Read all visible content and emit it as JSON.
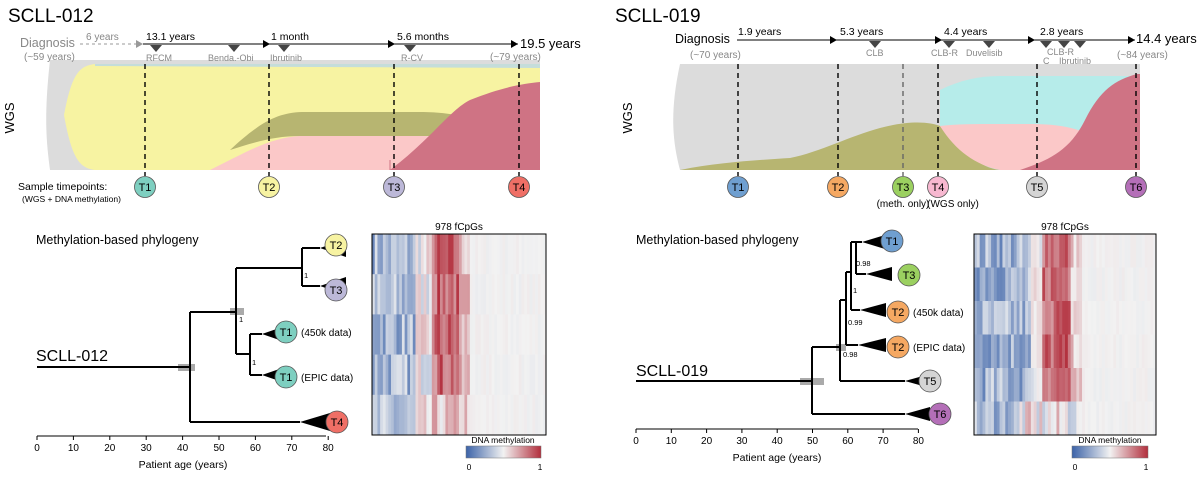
{
  "colors": {
    "t1": "#7ecfc0",
    "t2": "#f7f3a2",
    "t3": "#bcb8d8",
    "t4": "#ef6f66",
    "t1b": "#6f9fd0",
    "t2b": "#f5a862",
    "t3b": "#9bd060",
    "t4b": "#f7b8d0",
    "t5b": "#d4d4d4",
    "t6b": "#b46fb8",
    "yellow": "#f7f3a2",
    "pink": "#fbc8c8",
    "olive": "#b7b571",
    "rose": "#cf7384",
    "gray": "#d9d9d9",
    "lightgray": "#e6e6e6",
    "cyan": "#b6ecea",
    "meth_low": "#3c63a8",
    "meth_mid": "#f2f2f2",
    "meth_high": "#b22e3c"
  },
  "left": {
    "title": "SCLL-012",
    "wgs_label": "WGS",
    "diagnosis": {
      "label": "Diagnosis",
      "age": "(~59 years)"
    },
    "intervals": [
      "6 years",
      "13.1 years",
      "1 month",
      "5.6 months"
    ],
    "total": "19.5 years",
    "end_age": "(~79 years)",
    "treatments": [
      "RFCM",
      "Benda.-Obi",
      "Ibrutinib",
      "R-CV"
    ],
    "sample_label": "Sample timepoints:",
    "sample_sublabel": "(WGS + DNA methylation)",
    "timepoints": [
      "T1",
      "T2",
      "T3",
      "T4"
    ],
    "phylogeny_title": "Methylation-based phylogeny",
    "patient": "SCLL-012",
    "support": [
      "1",
      "1",
      "1"
    ],
    "tip_notes": [
      "(450k data)",
      "(EPIC data)"
    ],
    "axis_label": "Patient age (years)",
    "axis_ticks": [
      "0",
      "10",
      "20",
      "30",
      "40",
      "50",
      "60",
      "70",
      "80"
    ],
    "heatmap_title": "978 fCpGs",
    "legend_title": "DNA methylation",
    "legend_min": "0",
    "legend_max": "1"
  },
  "right": {
    "title": "SCLL-019",
    "wgs_label": "WGS",
    "diagnosis": {
      "label": "Diagnosis",
      "age": "(~70 years)"
    },
    "intervals": [
      "1.9 years",
      "5.3 years",
      "4.4 years",
      "2.8 years"
    ],
    "total": "14.4 years",
    "end_age": "(~84 years)",
    "treatments": [
      "CLB",
      "CLB-R",
      "Duvelisib",
      "CLB-R",
      "C",
      "Ibrutinib"
    ],
    "timepoints": [
      "T1",
      "T2",
      "T3",
      "T4",
      "T5",
      "T6"
    ],
    "tp_notes": [
      "(meth. only)",
      "(WGS only)"
    ],
    "phylogeny_title": "Methylation-based phylogeny",
    "patient": "SCLL-019",
    "support": [
      "0.98",
      "1",
      "0.99",
      "0.98"
    ],
    "tip_notes": [
      "(450k data)",
      "(EPIC data)"
    ],
    "axis_label": "Patient age (years)",
    "axis_ticks": [
      "0",
      "10",
      "20",
      "30",
      "40",
      "50",
      "60",
      "70",
      "80"
    ],
    "heatmap_title": "978 fCpGs",
    "legend_title": "DNA methylation",
    "legend_min": "0",
    "legend_max": "1"
  }
}
